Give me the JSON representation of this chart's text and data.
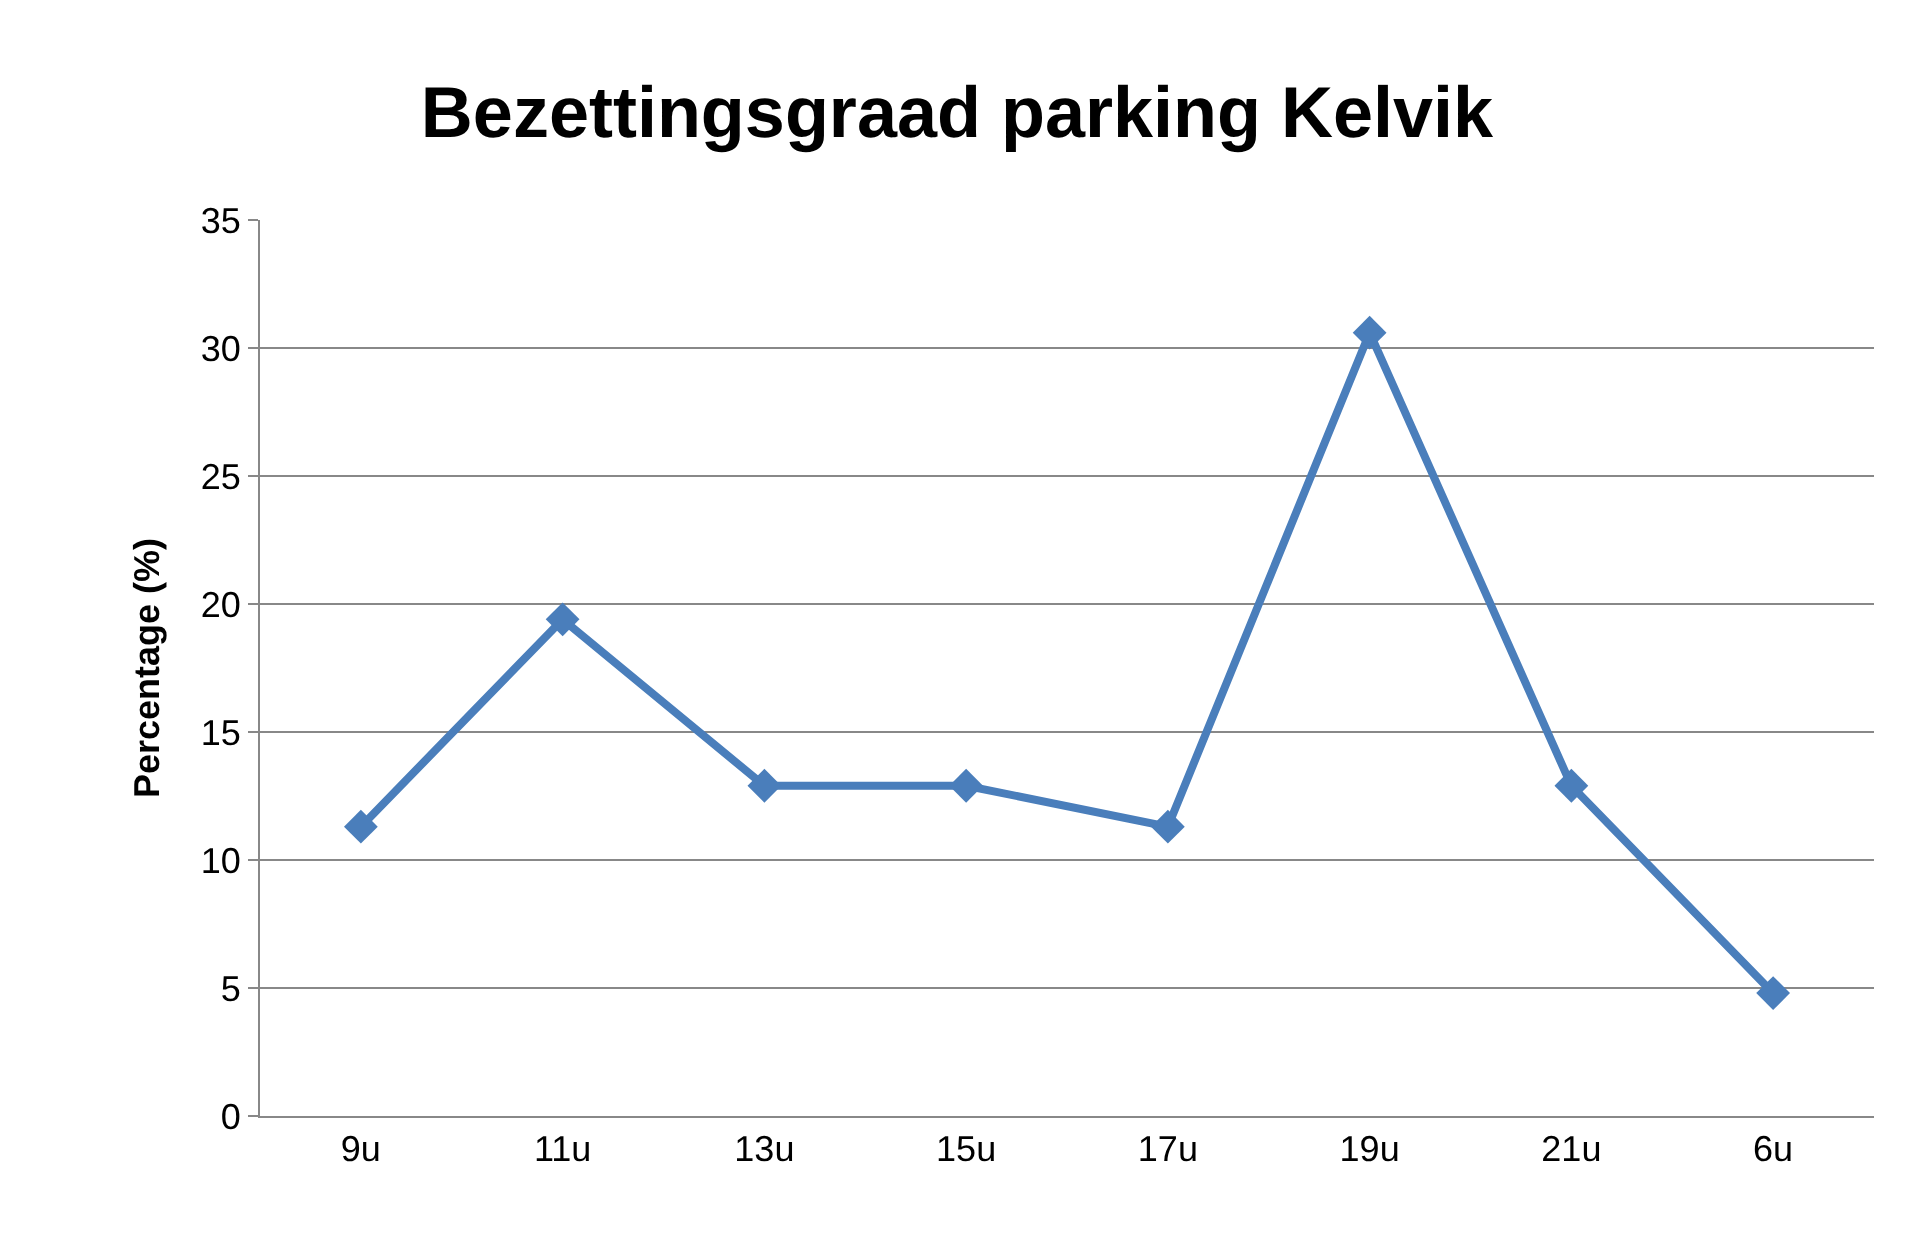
{
  "chart_data": {
    "type": "line",
    "title": "Bezettingsgraad parking Kelvik",
    "ylabel": "Percentage (%)",
    "categories": [
      "9u",
      "11u",
      "13u",
      "15u",
      "17u",
      "19u",
      "21u",
      "6u"
    ],
    "series": [
      {
        "color": "#4a7ebb",
        "values": [
          11.3,
          19.4,
          12.9,
          12.9,
          11.3,
          30.6,
          12.9,
          4.8
        ]
      }
    ],
    "ylim": [
      0,
      35
    ],
    "yticks": [
      0,
      5,
      10,
      15,
      20,
      25,
      30,
      35
    ],
    "grid": "y",
    "legend": false,
    "marker": "diamond",
    "line_style": "solid"
  }
}
